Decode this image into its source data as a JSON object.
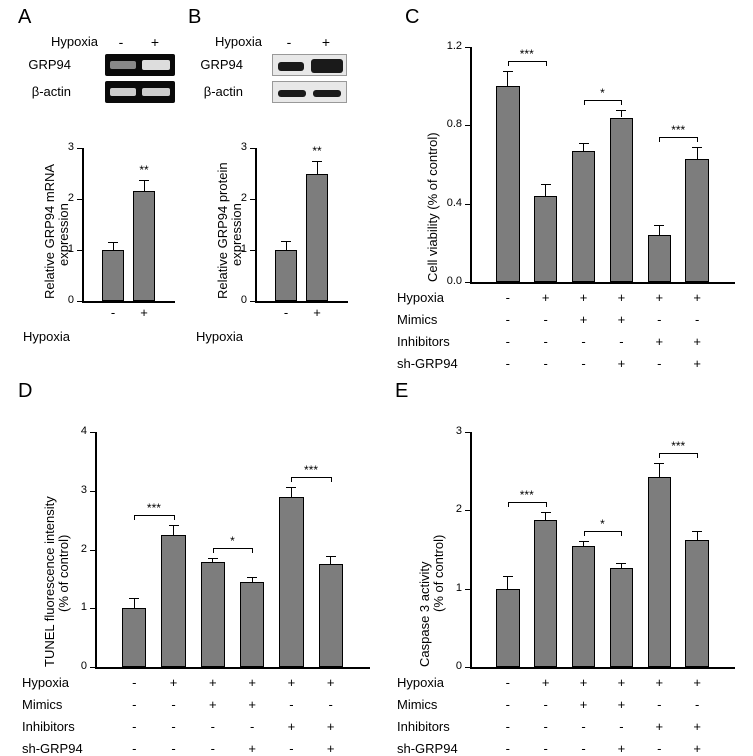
{
  "colors": {
    "bar_fill": "#7d7d7d",
    "bar_border": "#000000",
    "axis": "#000000",
    "bg": "#ffffff"
  },
  "labels": {
    "A": "A",
    "B": "B",
    "C": "C",
    "D": "D",
    "E": "E",
    "GRP94": "GRP94",
    "bactin": "β-actin",
    "Hypoxia": "Hypoxia",
    "Mimics": "Mimics",
    "Inhibitors": "Inhibitors",
    "shGRP94": "sh-GRP94",
    "minus": "-",
    "plus": "+"
  },
  "panelA": {
    "ylabel1": "Relative GRP94 mRNA",
    "ylabel2": "expression",
    "ylim": [
      0,
      3
    ],
    "ytick_step": 1,
    "values": [
      1.0,
      2.15
    ],
    "errors": [
      0.15,
      0.22
    ],
    "xlabels": [
      "-",
      "+"
    ],
    "sig": "**",
    "bar_color": "#7d7d7d"
  },
  "panelB": {
    "ylabel1": "Relative GRP94 protein",
    "ylabel2": "expression",
    "ylim": [
      0,
      3
    ],
    "ytick_step": 1,
    "values": [
      1.0,
      2.5
    ],
    "errors": [
      0.18,
      0.25
    ],
    "xlabels": [
      "-",
      "+"
    ],
    "sig": "**",
    "bar_color": "#7d7d7d"
  },
  "panelC": {
    "ylabel1": "Cell viability (% of control)",
    "ylim": [
      0.0,
      1.2
    ],
    "ytick_step": 0.4,
    "values": [
      1.0,
      0.44,
      0.67,
      0.84,
      0.24,
      0.63
    ],
    "errors": [
      0.08,
      0.06,
      0.04,
      0.04,
      0.05,
      0.06
    ],
    "sigpairs": [
      {
        "a": 0,
        "b": 1,
        "text": "***"
      },
      {
        "a": 2,
        "b": 3,
        "text": "*"
      },
      {
        "a": 4,
        "b": 5,
        "text": "***"
      }
    ],
    "rows": [
      {
        "label": "Hypoxia",
        "marks": [
          "-",
          "+",
          "+",
          "+",
          "+",
          "+"
        ]
      },
      {
        "label": "Mimics",
        "marks": [
          "-",
          "-",
          "+",
          "+",
          "-",
          "-"
        ]
      },
      {
        "label": "Inhibitors",
        "marks": [
          "-",
          "-",
          "-",
          "-",
          "+",
          "+"
        ]
      },
      {
        "label": "sh-GRP94",
        "marks": [
          "-",
          "-",
          "-",
          "+",
          "-",
          "+"
        ]
      }
    ],
    "bar_color": "#7d7d7d"
  },
  "panelD": {
    "ylabel1": "TUNEL fluorescence intensity",
    "ylabel2": "(% of control)",
    "ylim": [
      0,
      4
    ],
    "ytick_step": 1,
    "values": [
      1.0,
      2.25,
      1.78,
      1.45,
      2.9,
      1.75
    ],
    "errors": [
      0.18,
      0.16,
      0.08,
      0.08,
      0.17,
      0.14
    ],
    "sigpairs": [
      {
        "a": 0,
        "b": 1,
        "text": "***"
      },
      {
        "a": 2,
        "b": 3,
        "text": "*"
      },
      {
        "a": 4,
        "b": 5,
        "text": "***"
      }
    ],
    "rows": [
      {
        "label": "Hypoxia",
        "marks": [
          "-",
          "+",
          "+",
          "+",
          "+",
          "+"
        ]
      },
      {
        "label": "Mimics",
        "marks": [
          "-",
          "-",
          "+",
          "+",
          "-",
          "-"
        ]
      },
      {
        "label": "Inhibitors",
        "marks": [
          "-",
          "-",
          "-",
          "-",
          "+",
          "+"
        ]
      },
      {
        "label": "sh-GRP94",
        "marks": [
          "-",
          "-",
          "-",
          "+",
          "-",
          "+"
        ]
      }
    ],
    "bar_color": "#7d7d7d"
  },
  "panelE": {
    "ylabel1": "Caspase 3 activity",
    "ylabel2": "(% of control)",
    "ylim": [
      0,
      3
    ],
    "ytick_step": 1,
    "values": [
      1.0,
      1.88,
      1.55,
      1.27,
      2.42,
      1.62
    ],
    "errors": [
      0.16,
      0.1,
      0.06,
      0.06,
      0.18,
      0.12
    ],
    "sigpairs": [
      {
        "a": 0,
        "b": 1,
        "text": "***"
      },
      {
        "a": 2,
        "b": 3,
        "text": "*"
      },
      {
        "a": 4,
        "b": 5,
        "text": "***"
      }
    ],
    "rows": [
      {
        "label": "Hypoxia",
        "marks": [
          "-",
          "+",
          "+",
          "+",
          "+",
          "+"
        ]
      },
      {
        "label": "Mimics",
        "marks": [
          "-",
          "-",
          "+",
          "+",
          "-",
          "-"
        ]
      },
      {
        "label": "Inhibitors",
        "marks": [
          "-",
          "-",
          "-",
          "-",
          "+",
          "+"
        ]
      },
      {
        "label": "sh-GRP94",
        "marks": [
          "-",
          "-",
          "-",
          "+",
          "-",
          "+"
        ]
      }
    ],
    "bar_color": "#7d7d7d"
  }
}
